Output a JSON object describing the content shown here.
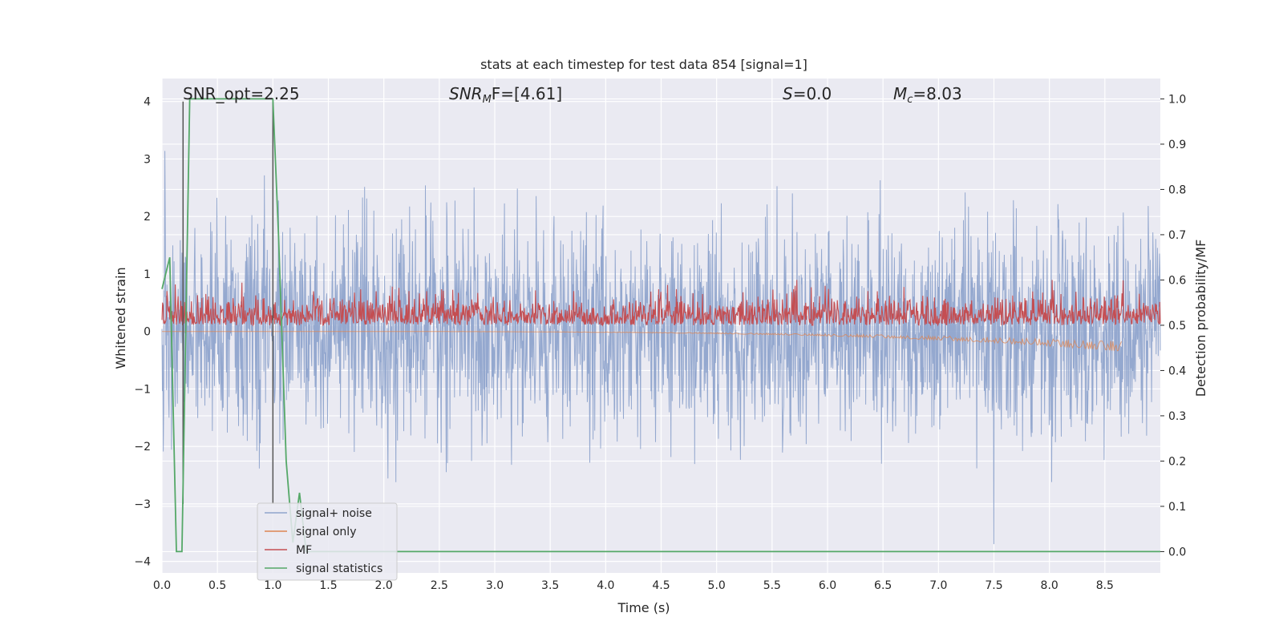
{
  "chart_data": {
    "type": "line",
    "title": "stats at each timestep for test data 854 [signal=1]",
    "xlabel": "Time (s)",
    "ylabel_left": "Whitened strain",
    "ylabel_right": "Detection probability/MF",
    "xlim": [
      0.0,
      9.0
    ],
    "ylim_left": [
      -4.2,
      4.4
    ],
    "ylim_right": [
      -0.047,
      1.045
    ],
    "grid": true,
    "legend_position": "lower-left",
    "x_ticks": [
      "0.0",
      "0.5",
      "1.0",
      "1.5",
      "2.0",
      "2.5",
      "3.0",
      "3.5",
      "4.0",
      "4.5",
      "5.0",
      "5.5",
      "6.0",
      "6.5",
      "7.0",
      "7.5",
      "8.0",
      "8.5"
    ],
    "y_ticks_left": [
      "4",
      "3",
      "2",
      "1",
      "0",
      "−1",
      "−2",
      "−3",
      "−4"
    ],
    "y_ticks_right": [
      "1.0",
      "0.9",
      "0.8",
      "0.7",
      "0.6",
      "0.5",
      "0.4",
      "0.3",
      "0.2",
      "0.1",
      "0.0"
    ],
    "annotations": {
      "snr_opt": "SNR_opt=2.25",
      "snr_mf_italic": "SNR",
      "snr_mf_sub": "M",
      "snr_mf_rest": "F=[4.61]",
      "s_italic": "S",
      "s_rest": "=0.0",
      "mc_italic": "M",
      "mc_sub": "c",
      "mc_rest": "=8.03"
    },
    "vertical_markers_x": [
      0.19,
      1.0
    ],
    "series": [
      {
        "name": "signal+ noise",
        "color": "#8fa4cc",
        "axis": "left",
        "style": "noise",
        "amplitude_std": 0.9,
        "typical_range": [
          -3.7,
          4.0
        ]
      },
      {
        "name": "signal only",
        "color": "#dd8452",
        "axis": "left",
        "style": "chirp",
        "x_end": 8.65,
        "final_amplitude": -0.35
      },
      {
        "name": "MF",
        "color": "#c44e52",
        "axis": "right",
        "style": "noise",
        "baseline": 0.5,
        "typical_range": [
          0.5,
          0.6
        ]
      },
      {
        "name": "signal statistics",
        "color": "#55a868",
        "axis": "right",
        "x": [
          0.0,
          0.07,
          0.13,
          0.18,
          0.25,
          0.5,
          0.75,
          1.0,
          1.05,
          1.12,
          1.18,
          1.24,
          1.3,
          1.36,
          9.0
        ],
        "y": [
          0.58,
          0.65,
          0.0,
          0.0,
          1.0,
          1.0,
          1.0,
          1.0,
          0.7,
          0.2,
          0.02,
          0.13,
          0.0,
          0.0,
          0.0
        ]
      }
    ],
    "colors": {
      "background": "#eaeaf2",
      "grid": "#ffffff",
      "marker": "#555555"
    }
  }
}
